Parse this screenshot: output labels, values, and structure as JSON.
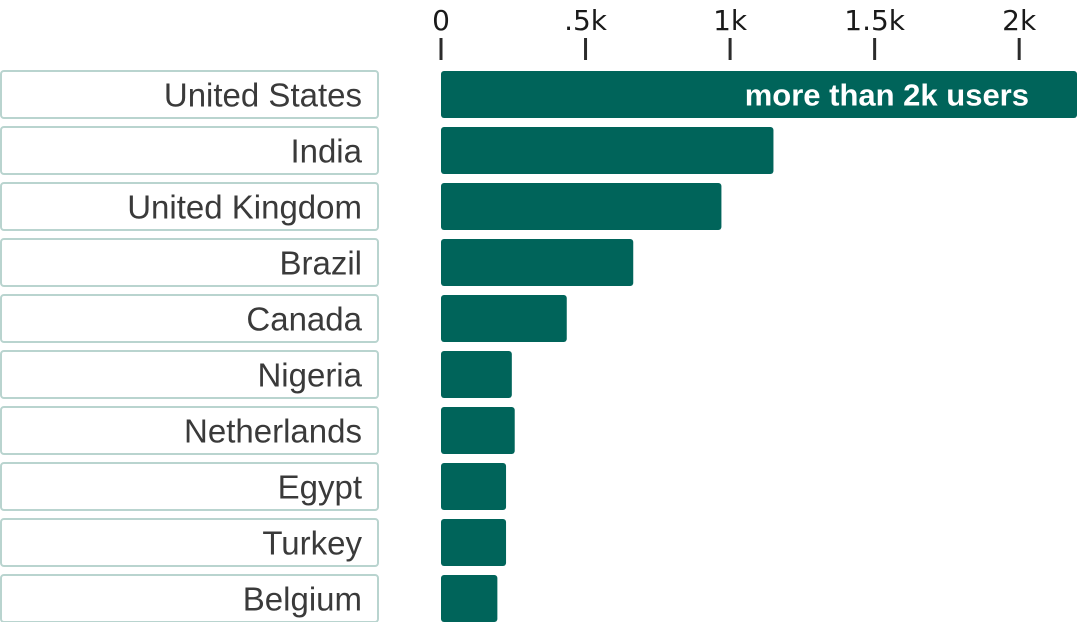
{
  "chart_data": {
    "type": "bar",
    "orientation": "horizontal",
    "categories": [
      "United States",
      "India",
      "United Kingdom",
      "Brazil",
      "Canada",
      "Nigeria",
      "Netherlands",
      "Egypt",
      "Turkey",
      "Belgium"
    ],
    "values": [
      2200,
      1150,
      970,
      665,
      435,
      245,
      255,
      225,
      225,
      195
    ],
    "xlim": [
      0,
      2200
    ],
    "ticks": [
      0,
      500,
      1000,
      1500,
      2000
    ],
    "tick_labels": [
      "0",
      ".5k",
      "1k",
      "1.5k",
      "2k"
    ],
    "axis_position": "top",
    "grid": false,
    "annotations": [
      {
        "category": "United States",
        "text": "more than 2k users"
      }
    ],
    "title": "",
    "xlabel": "",
    "ylabel": "",
    "bar_color": "#00645a",
    "label_border_color": "#b9d4cf"
  }
}
